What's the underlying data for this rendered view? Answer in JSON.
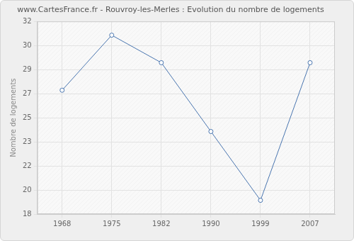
{
  "chart_data": {
    "type": "line",
    "title": "www.CartesFrance.fr - Rouvroy-les-Merles : Evolution du nombre de logements",
    "y_label": "Nombre de logements",
    "categories": [
      "1968",
      "1975",
      "1982",
      "1990",
      "1999",
      "2007"
    ],
    "values": [
      27,
      31,
      29,
      24,
      19,
      29
    ],
    "color": "#4a76b0",
    "marker": "circle",
    "ylim": [
      18,
      32
    ],
    "yticks": [
      18,
      {
        "value": 19.75,
        "label": "20"
      },
      {
        "value": 21.5,
        "label": "22"
      },
      {
        "value": 23.25,
        "label": "23"
      },
      25,
      {
        "value": 26.75,
        "label": "27"
      },
      {
        "value": 28.5,
        "label": "29"
      },
      {
        "value": 30.25,
        "label": "30"
      },
      32
    ],
    "grid": true
  }
}
